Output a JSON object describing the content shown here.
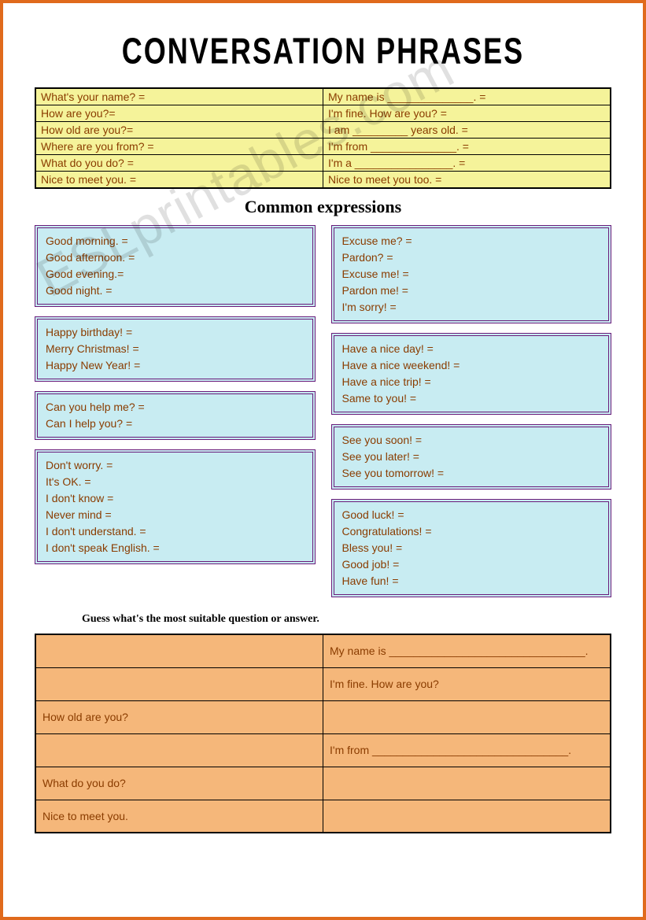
{
  "title": "CONVERSATION PHRASES",
  "watermark": "ESLprintables.com",
  "yellow_rows": [
    {
      "left": "What's your name? =",
      "right": "My name is ______________. ="
    },
    {
      "left": "How are you?=",
      "right": "I'm fine. How are you? ="
    },
    {
      "left": "How old are you?=",
      "right": "I am _________ years old. ="
    },
    {
      "left": "Where are you from? =",
      "right": "I'm from ______________. ="
    },
    {
      "left": "What do you do? =",
      "right": "I'm a ________________. ="
    },
    {
      "left": "Nice to meet you. =",
      "right": "Nice to meet you too. ="
    }
  ],
  "subtitle": "Common expressions",
  "left_boxes": [
    [
      "Good morning. =",
      "Good afternoon. =",
      "Good evening.=",
      "Good night. ="
    ],
    [
      "Happy birthday! =",
      "Merry Christmas! =",
      "Happy New Year! ="
    ],
    [
      "Can you help me? =",
      "Can I help you? ="
    ],
    [
      "Don't worry. =",
      "It's OK. =",
      "I don't know =",
      "Never mind =",
      "I don't understand. =",
      "I don't speak English. ="
    ]
  ],
  "right_boxes": [
    [
      "Excuse me? =",
      "Pardon? =",
      "Excuse me! =",
      "Pardon me! =",
      "I'm sorry! ="
    ],
    [
      "Have a nice day! =",
      "Have a nice weekend! =",
      "Have a nice trip! =",
      "Same to you! ="
    ],
    [
      "See you soon! =",
      "See you later! =",
      "See you tomorrow! ="
    ],
    [
      "Good luck! =",
      "Congratulations! =",
      "Bless you! =",
      "Good job! =",
      "Have fun! ="
    ]
  ],
  "instruction": "Guess what's the most suitable question or answer.",
  "orange_rows": [
    {
      "left": "",
      "right": "My name is ________________________________."
    },
    {
      "left": "",
      "right": "I'm fine. How are you?"
    },
    {
      "left": "How old are you?",
      "right": ""
    },
    {
      "left": "",
      "right": "I'm from ________________________________."
    },
    {
      "left": "What do you do?",
      "right": ""
    },
    {
      "left": "Nice to meet you.",
      "right": ""
    }
  ],
  "colors": {
    "page_border": "#e06a1c",
    "yellow_cell": "#f5f39a",
    "cyan_box": "#c8ecf2",
    "cyan_border": "#6a1b7a",
    "orange_cell": "#f5b77a",
    "text_color": "#8a3c00"
  }
}
